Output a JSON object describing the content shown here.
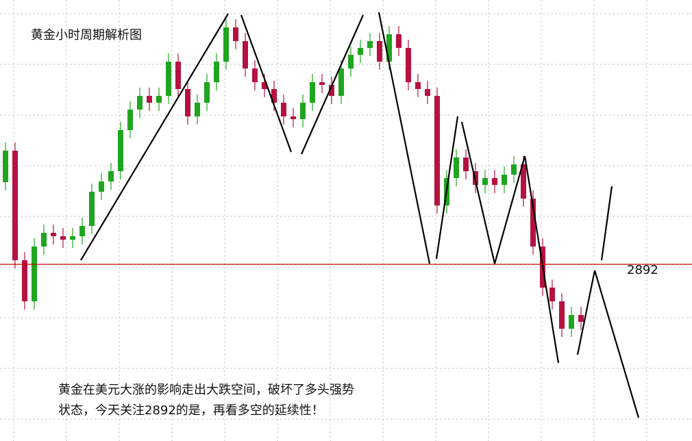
{
  "chart_data": {
    "type": "candlestick",
    "title": "黄金小时周期解析图",
    "annotation": [
      "黄金在美元大涨的影响走出大跌空间，破坏了多头强势",
      "状态，今天关注2892的是，再看多空的延续性！"
    ],
    "level": 2892,
    "level_color": "#c00000",
    "up_color": "#1fa51f",
    "down_color": "#b5123f",
    "ylim": [
      2866.2,
      2930.6
    ],
    "grid": true,
    "open": [
      2904.0,
      2908.6,
      2892.6,
      2886.6,
      2894.6,
      2896.6,
      2896.1,
      2895.6,
      2896.1,
      2897.6,
      2902.6,
      2904.1,
      2905.6,
      2911.6,
      2914.6,
      2916.6,
      2915.6,
      2916.6,
      2921.6,
      2917.6,
      2913.6,
      2915.6,
      2918.6,
      2921.6,
      2926.6,
      2924.6,
      2920.6,
      2918.6,
      2917.6,
      2915.6,
      2913.6,
      2913.2,
      2915.6,
      2918.6,
      2918.2,
      2916.6,
      2920.6,
      2922.6,
      2923.6,
      2924.6,
      2921.6,
      2925.6,
      2923.6,
      2918.6,
      2917.6,
      2916.6,
      2900.6,
      2904.6,
      2907.6,
      2905.6,
      2903.6,
      2904.6,
      2903.6,
      2905.1,
      2906.6,
      2901.6,
      2894.6,
      2888.6,
      2886.6,
      2882.6,
      2884.6
    ],
    "high": [
      2909.8,
      2909.8,
      2893.8,
      2895.8,
      2897.8,
      2897.8,
      2897.3,
      2897.3,
      2898.8,
      2903.8,
      2905.3,
      2906.8,
      2912.8,
      2915.8,
      2917.8,
      2917.8,
      2917.8,
      2922.8,
      2922.8,
      2918.8,
      2916.8,
      2919.8,
      2922.8,
      2927.8,
      2927.8,
      2925.8,
      2921.8,
      2919.8,
      2918.8,
      2916.8,
      2914.8,
      2916.8,
      2919.8,
      2919.8,
      2919.4,
      2921.8,
      2923.8,
      2924.8,
      2925.8,
      2925.8,
      2926.8,
      2926.8,
      2924.8,
      2919.8,
      2918.8,
      2917.8,
      2905.8,
      2908.8,
      2908.8,
      2906.8,
      2905.8,
      2905.8,
      2906.3,
      2907.8,
      2907.8,
      2902.8,
      2895.8,
      2889.8,
      2887.8,
      2885.8,
      2885.8
    ],
    "low": [
      2902.8,
      2891.4,
      2885.4,
      2885.4,
      2893.4,
      2894.9,
      2894.4,
      2894.4,
      2894.9,
      2896.4,
      2901.4,
      2902.9,
      2904.4,
      2910.4,
      2913.4,
      2914.4,
      2914.4,
      2915.4,
      2916.4,
      2912.4,
      2912.4,
      2914.4,
      2917.4,
      2920.4,
      2923.4,
      2919.4,
      2917.4,
      2916.4,
      2914.4,
      2912.4,
      2912.0,
      2912.0,
      2914.4,
      2917.0,
      2915.4,
      2915.4,
      2919.4,
      2921.4,
      2922.4,
      2920.4,
      2920.4,
      2922.4,
      2917.4,
      2916.4,
      2915.4,
      2899.4,
      2899.4,
      2903.4,
      2904.4,
      2902.4,
      2902.4,
      2902.4,
      2902.4,
      2903.9,
      2900.4,
      2893.4,
      2887.4,
      2885.4,
      2881.4,
      2881.4,
      2882.4
    ],
    "close": [
      2908.6,
      2892.6,
      2886.6,
      2894.6,
      2896.6,
      2896.1,
      2895.6,
      2896.1,
      2897.6,
      2902.6,
      2904.1,
      2905.6,
      2911.6,
      2914.6,
      2916.6,
      2915.6,
      2916.6,
      2921.6,
      2917.6,
      2913.6,
      2915.6,
      2918.6,
      2921.6,
      2926.6,
      2924.6,
      2920.6,
      2918.6,
      2917.6,
      2915.6,
      2913.6,
      2913.2,
      2915.6,
      2918.6,
      2918.2,
      2916.6,
      2920.6,
      2922.6,
      2923.6,
      2924.6,
      2921.6,
      2925.6,
      2923.6,
      2918.6,
      2917.6,
      2916.6,
      2900.6,
      2904.6,
      2907.6,
      2905.6,
      2903.6,
      2904.6,
      2903.6,
      2905.1,
      2906.6,
      2901.6,
      2894.6,
      2888.6,
      2886.6,
      2882.6,
      2884.6,
      2883.6
    ]
  }
}
